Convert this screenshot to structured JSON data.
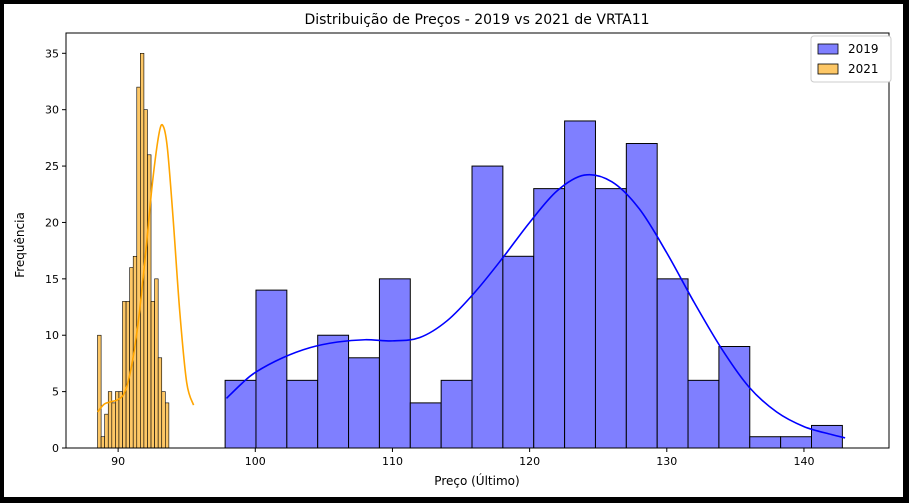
{
  "chart_data": {
    "type": "bar",
    "title": "Distribuição de Preços - 2019 vs 2021 de VRTA11",
    "xlabel": "Preço (Último)",
    "ylabel": "Frequência",
    "xlim": [
      86.2,
      146.2
    ],
    "ylim": [
      0,
      36.8
    ],
    "xticks": [
      90,
      100,
      110,
      120,
      130,
      140
    ],
    "yticks": [
      0,
      5,
      10,
      15,
      20,
      25,
      30,
      35
    ],
    "grid": false,
    "legend_position": "top-right",
    "series": [
      {
        "name": "2019",
        "color": "#7f7fff",
        "edge_color": "#000000",
        "line_color": "#0000ff",
        "bin_edges": [
          97.8,
          100.05,
          102.3,
          104.55,
          106.8,
          109.05,
          111.3,
          113.55,
          115.8,
          118.05,
          120.3,
          122.55,
          124.8,
          127.05,
          129.3,
          131.55,
          133.8,
          136.05,
          138.3,
          140.55,
          142.8
        ],
        "values": [
          6,
          14,
          6,
          10,
          8,
          15,
          4,
          6,
          25,
          17,
          23,
          29,
          23,
          27,
          15,
          6,
          9,
          1,
          1,
          2
        ],
        "kde": [
          [
            97.9,
            4.4
          ],
          [
            99,
            5.7
          ],
          [
            100,
            6.7
          ],
          [
            102,
            8.0
          ],
          [
            104,
            8.9
          ],
          [
            106,
            9.4
          ],
          [
            108,
            9.6
          ],
          [
            110,
            9.5
          ],
          [
            112,
            9.8
          ],
          [
            114,
            11.3
          ],
          [
            116,
            13.8
          ],
          [
            118,
            16.8
          ],
          [
            120,
            20.0
          ],
          [
            122,
            22.8
          ],
          [
            124,
            24.2
          ],
          [
            126,
            23.6
          ],
          [
            128,
            21.2
          ],
          [
            130,
            17.3
          ],
          [
            132,
            12.9
          ],
          [
            134,
            8.8
          ],
          [
            136,
            5.4
          ],
          [
            138,
            3.2
          ],
          [
            140,
            1.9
          ],
          [
            142,
            1.2
          ],
          [
            143,
            0.9
          ]
        ]
      },
      {
        "name": "2021",
        "color": "#fdc766",
        "edge_color": "#000000",
        "line_color": "#ffa500",
        "bin_edges": [
          88.5,
          88.76,
          89.02,
          89.28,
          89.54,
          89.8,
          90.06,
          90.32,
          90.58,
          90.84,
          91.1,
          91.36,
          91.62,
          91.88,
          92.14,
          92.4,
          92.66,
          92.92,
          93.18,
          93.44,
          93.7,
          93.96,
          94.22,
          94.48,
          94.74,
          95.0,
          95.26,
          95.52
        ],
        "values": [
          10,
          1,
          3,
          5,
          4,
          5,
          0,
          0,
          0,
          0,
          0,
          0,
          0,
          0,
          0,
          0,
          0,
          0,
          0,
          0,
          0,
          0,
          0,
          0,
          0,
          0,
          0
        ],
        "values_main": [
          0,
          0,
          0,
          0,
          0,
          0,
          5,
          13,
          13,
          16,
          17,
          32,
          35,
          30,
          26,
          13,
          15,
          8,
          5,
          4,
          0,
          0,
          0,
          0,
          0,
          0,
          0
        ],
        "kde": [
          [
            88.5,
            3.2
          ],
          [
            89,
            3.9
          ],
          [
            89.5,
            4.1
          ],
          [
            90,
            4.3
          ],
          [
            90.5,
            5.0
          ],
          [
            91,
            7.4
          ],
          [
            91.5,
            11.5
          ],
          [
            92,
            17.2
          ],
          [
            92.5,
            23.5
          ],
          [
            93,
            28.0
          ],
          [
            93.3,
            28.5
          ],
          [
            93.6,
            26.5
          ],
          [
            94,
            20.5
          ],
          [
            94.5,
            12.0
          ],
          [
            95,
            5.8
          ],
          [
            95.5,
            3.8
          ]
        ]
      }
    ]
  }
}
